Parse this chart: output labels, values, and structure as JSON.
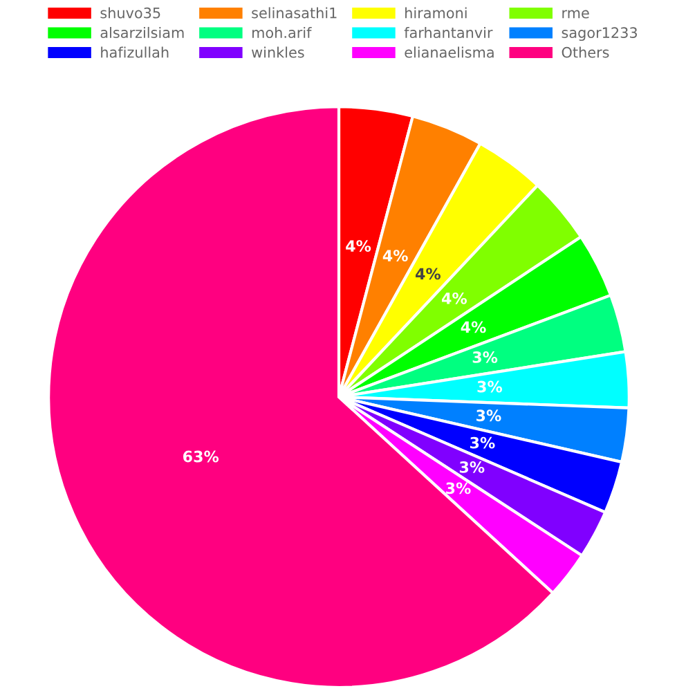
{
  "chart_data": {
    "type": "pie",
    "categories": [
      "shuvo35",
      "selinasathi1",
      "hiramoni",
      "rme",
      "alsarzilsiam",
      "moh.arif",
      "farhantanvir",
      "sagor1233",
      "hafizullah",
      "winkles",
      "elianaelisma",
      "Others"
    ],
    "values": [
      4.1,
      4.0,
      3.9,
      3.7,
      3.6,
      3.2,
      3.1,
      3.0,
      2.9,
      2.7,
      2.6,
      63.2
    ],
    "value_labels": [
      "4%",
      "4%",
      "4%",
      "4%",
      "4%",
      "3%",
      "3%",
      "3%",
      "3%",
      "3%",
      "3%",
      "63%"
    ],
    "colors": [
      "#ff0000",
      "#ff8000",
      "#ffff00",
      "#80ff00",
      "#00ff00",
      "#00ff80",
      "#00ffff",
      "#0080ff",
      "#0000ff",
      "#8000ff",
      "#ff00ff",
      "#ff0080"
    ],
    "legend": "top"
  }
}
